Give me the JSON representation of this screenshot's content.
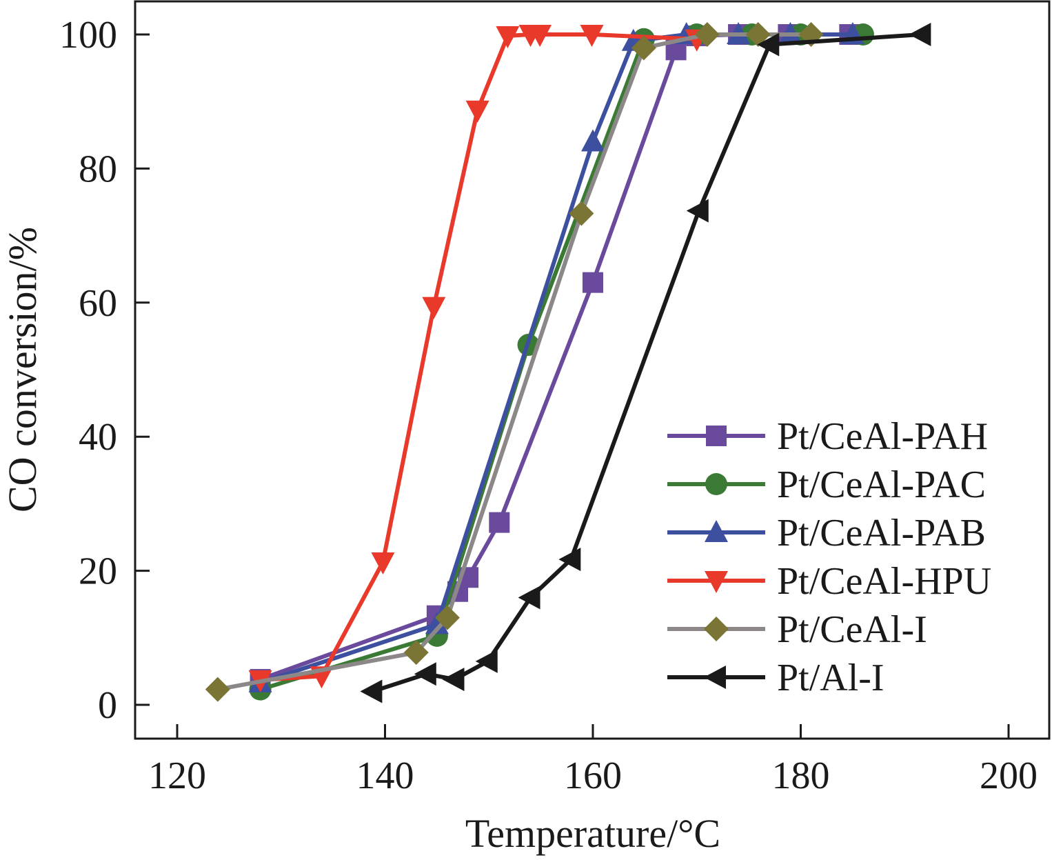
{
  "chart_data": {
    "type": "line",
    "title": "",
    "xlabel": "Temperature/°C",
    "ylabel": "CO conversion/%",
    "xlim": [
      116,
      204
    ],
    "ylim": [
      -5,
      105
    ],
    "xticks": [
      120,
      140,
      160,
      180,
      200
    ],
    "yticks": [
      0,
      20,
      40,
      60,
      80,
      100
    ],
    "grid": false,
    "legend_position": "bottom-right",
    "series": [
      {
        "name": "Pt/CeAl-PAH",
        "color": "#6a4a9c",
        "marker": "square",
        "x": [
          128,
          145,
          147,
          148,
          151,
          160,
          168,
          170,
          174,
          178.8,
          184.7
        ],
        "y": [
          3.8,
          13.3,
          16.9,
          19,
          27.2,
          63,
          97.7,
          99.8,
          100,
          100,
          100
        ]
      },
      {
        "name": "Pt/CeAl-PAC",
        "color": "#3a7a35",
        "marker": "circle",
        "x": [
          128,
          145,
          153.8,
          164.9,
          170,
          175.3,
          180,
          186
        ],
        "y": [
          2.3,
          10.3,
          53.7,
          99.3,
          100,
          100,
          100,
          100
        ]
      },
      {
        "name": "Pt/CeAl-PAB",
        "color": "#3d4f9f",
        "marker": "triangle-up",
        "x": [
          128,
          145,
          160,
          163.9,
          169,
          174,
          179,
          185
        ],
        "y": [
          3.3,
          12,
          84,
          99,
          100,
          100,
          100,
          100
        ]
      },
      {
        "name": "Pt/CeAl-HPU",
        "color": "#e8392b",
        "marker": "triangle-down",
        "x": [
          128,
          133.9,
          139.8,
          144.7,
          148.9,
          151.8,
          154,
          154.9,
          159.9,
          170
        ],
        "y": [
          3.7,
          4.3,
          21.3,
          59.4,
          88.7,
          99.8,
          100,
          100,
          100,
          99.3
        ]
      },
      {
        "name": "Pt/CeAl-I",
        "color": "#7a7535",
        "line_color": "#8c8888",
        "marker": "diamond",
        "x": [
          123.9,
          143,
          146,
          158.9,
          164.9,
          171,
          175.9,
          181
        ],
        "y": [
          2.3,
          7.8,
          13,
          73.3,
          98,
          100,
          100,
          100
        ]
      },
      {
        "name": "Pt/Al-I",
        "color": "#1a1a1a",
        "marker": "triangle-left",
        "x": [
          138.8,
          144,
          146.7,
          149.9,
          154,
          157.9,
          170.2,
          177,
          191.6
        ],
        "y": [
          2,
          4.6,
          3.8,
          6.5,
          16,
          21.7,
          73.7,
          98.5,
          100
        ]
      }
    ]
  }
}
